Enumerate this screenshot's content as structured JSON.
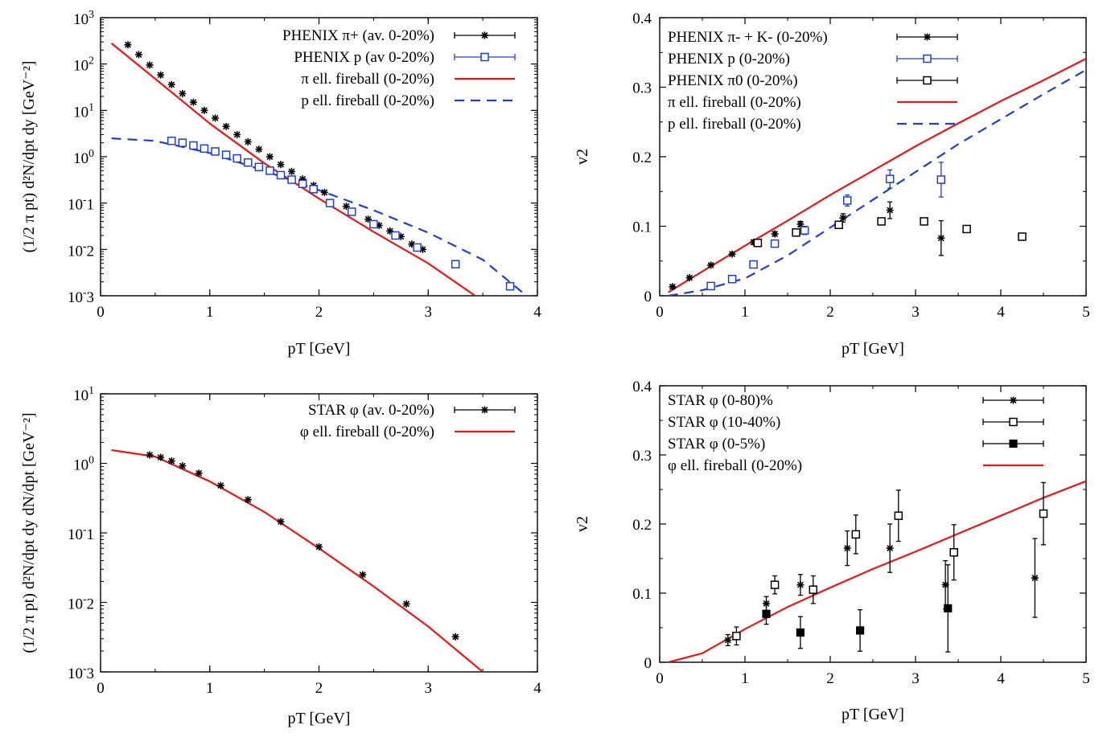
{
  "chart_data": [
    {
      "type": "scatter",
      "xlabel": "pT [GeV]",
      "ylabel": "(1/2 π pt) d²N/dpt dy [GeV⁻²]",
      "xlim": [
        0,
        4
      ],
      "ylim": [
        0.001,
        1000
      ],
      "log_y": true,
      "xticks": [
        "0",
        "1",
        "2",
        "3",
        "4"
      ],
      "yticks": [
        "10^-3",
        "10^-2",
        "10^-1",
        "10^0",
        "10^1",
        "10^2",
        "10^3"
      ],
      "legend_position": "top-right",
      "series": [
        {
          "name": "PHENIX π+ (av. 0-20%)",
          "marker": "star",
          "color": "#000000",
          "x": [
            0.25,
            0.35,
            0.45,
            0.55,
            0.65,
            0.75,
            0.85,
            0.95,
            1.05,
            1.15,
            1.25,
            1.35,
            1.45,
            1.55,
            1.65,
            1.75,
            1.85,
            1.95,
            2.05,
            2.25,
            2.45,
            2.55,
            2.65,
            2.75,
            2.85,
            2.95
          ],
          "y": [
            260,
            160,
            95,
            58,
            36,
            23,
            15,
            10,
            6.8,
            4.5,
            3.0,
            2.1,
            1.45,
            1.0,
            0.68,
            0.48,
            0.33,
            0.24,
            0.17,
            0.085,
            0.045,
            0.033,
            0.025,
            0.019,
            0.013,
            0.01
          ]
        },
        {
          "name": "PHENIX p (av 0-20%)",
          "marker": "open-square",
          "color": "#1f3fd0",
          "x": [
            0.65,
            0.75,
            0.85,
            0.95,
            1.05,
            1.15,
            1.25,
            1.35,
            1.45,
            1.55,
            1.65,
            1.75,
            1.85,
            1.95,
            2.1,
            2.3,
            2.5,
            2.7,
            2.9,
            3.25,
            3.75
          ],
          "y": [
            2.2,
            2.0,
            1.75,
            1.5,
            1.3,
            1.1,
            0.92,
            0.75,
            0.6,
            0.5,
            0.4,
            0.32,
            0.26,
            0.2,
            0.1,
            0.065,
            0.035,
            0.02,
            0.011,
            0.0048,
            0.0016
          ]
        },
        {
          "name": "π ell. fireball (0-20%)",
          "line": "solid",
          "color": "#e81818",
          "x": [
            0.1,
            0.5,
            1.0,
            1.5,
            2.0,
            2.5,
            3.0,
            3.43
          ],
          "y": [
            280,
            48,
            5.2,
            0.72,
            0.125,
            0.024,
            0.005,
            0.001
          ]
        },
        {
          "name": "p ell. fireball (0-20%)",
          "line": "dashed",
          "color": "#1f3fd0",
          "x": [
            0.1,
            0.5,
            1.0,
            1.5,
            2.0,
            2.5,
            3.0,
            3.5,
            3.9
          ],
          "y": [
            2.5,
            2.2,
            1.2,
            0.5,
            0.19,
            0.07,
            0.023,
            0.006,
            0.001
          ]
        }
      ]
    },
    {
      "type": "scatter",
      "xlabel": "pT [GeV]",
      "ylabel": "v2",
      "xlim": [
        0,
        5
      ],
      "ylim": [
        0,
        0.4
      ],
      "xticks": [
        "0",
        "1",
        "2",
        "3",
        "4",
        "5"
      ],
      "yticks": [
        "0",
        "0.1",
        "0.2",
        "0.3",
        "0.4"
      ],
      "legend_position": "top-left",
      "series": [
        {
          "name": "PHENIX π- + K- (0-20%)",
          "marker": "star",
          "color": "#000000",
          "x": [
            0.15,
            0.35,
            0.6,
            0.85,
            1.1,
            1.35,
            1.65,
            2.15,
            2.7,
            3.3
          ],
          "y": [
            0.013,
            0.026,
            0.044,
            0.06,
            0.077,
            0.089,
            0.103,
            0.112,
            0.123,
            0.083
          ],
          "err": [
            0.002,
            0.002,
            0.002,
            0.002,
            0.003,
            0.003,
            0.004,
            0.006,
            0.012,
            0.025
          ]
        },
        {
          "name": "PHENIX p (0-20%)",
          "marker": "open-square",
          "color": "#1f3fd0",
          "x": [
            0.6,
            0.85,
            1.1,
            1.35,
            1.7,
            2.2,
            2.7,
            3.3
          ],
          "y": [
            0.014,
            0.024,
            0.045,
            0.075,
            0.094,
            0.137,
            0.168,
            0.167
          ],
          "err": [
            0.003,
            0.003,
            0.004,
            0.004,
            0.006,
            0.008,
            0.013,
            0.025
          ]
        },
        {
          "name": "PHENIX π0 (0-20%)",
          "marker": "open-square",
          "color": "#000000",
          "x": [
            1.15,
            1.6,
            2.1,
            2.6,
            3.1,
            3.6,
            4.25
          ],
          "y": [
            0.076,
            0.091,
            0.102,
            0.107,
            0.107,
            0.096,
            0.085
          ],
          "err": [
            0.004,
            0.004,
            0.004,
            0.004,
            0.004,
            0.004,
            0.004
          ]
        },
        {
          "name": "π ell. fireball (0-20%)",
          "line": "solid",
          "color": "#e81818",
          "x": [
            0.1,
            0.5,
            1.0,
            1.5,
            2.0,
            2.5,
            3.0,
            3.5,
            4.0,
            4.5,
            5.0
          ],
          "y": [
            0.005,
            0.035,
            0.072,
            0.108,
            0.145,
            0.18,
            0.215,
            0.248,
            0.28,
            0.31,
            0.341
          ]
        },
        {
          "name": "p ell. fireball (0-20%)",
          "line": "dashed",
          "color": "#1f3fd0",
          "x": [
            0.1,
            0.5,
            1.0,
            1.5,
            2.0,
            2.5,
            3.0,
            3.5,
            4.0,
            4.5,
            5.0
          ],
          "y": [
            0.0,
            0.008,
            0.025,
            0.058,
            0.098,
            0.138,
            0.178,
            0.218,
            0.254,
            0.29,
            0.325
          ]
        }
      ]
    },
    {
      "type": "scatter",
      "xlabel": "pT [GeV]",
      "ylabel": "(1/2 π pt) d²N/dpt dy dN/dpt [GeV⁻²]",
      "xlim": [
        0,
        4
      ],
      "ylim": [
        0.001,
        10
      ],
      "log_y": true,
      "xticks": [
        "0",
        "1",
        "2",
        "3",
        "4"
      ],
      "yticks": [
        "10^-3",
        "10^-2",
        "10^-1",
        "10^0",
        "10^1"
      ],
      "legend_position": "top-right",
      "series": [
        {
          "name": "STAR φ (av. 0-20%)",
          "marker": "star",
          "color": "#000000",
          "x": [
            0.45,
            0.55,
            0.65,
            0.75,
            0.9,
            1.1,
            1.35,
            1.65,
            2.0,
            2.4,
            2.8,
            3.25
          ],
          "y": [
            1.32,
            1.22,
            1.08,
            0.92,
            0.72,
            0.48,
            0.3,
            0.145,
            0.063,
            0.025,
            0.0095,
            0.0032
          ]
        },
        {
          "name": "φ ell. fireball (0-20%)",
          "line": "solid",
          "color": "#e81818",
          "x": [
            0.1,
            0.5,
            1.0,
            1.5,
            2.0,
            2.5,
            3.0,
            3.5
          ],
          "y": [
            1.55,
            1.25,
            0.55,
            0.2,
            0.06,
            0.017,
            0.0045,
            0.001
          ]
        }
      ]
    },
    {
      "type": "scatter",
      "xlabel": "pT [GeV]",
      "ylabel": "v2",
      "xlim": [
        0,
        5
      ],
      "ylim": [
        0,
        0.4
      ],
      "xticks": [
        "0",
        "1",
        "2",
        "3",
        "4",
        "5"
      ],
      "yticks": [
        "0",
        "0.1",
        "0.2",
        "0.3",
        "0.4"
      ],
      "legend_position": "top-left",
      "series": [
        {
          "name": "STAR φ (0-80)%",
          "marker": "star",
          "color": "#000000",
          "x": [
            0.8,
            1.25,
            1.65,
            2.2,
            2.7,
            3.35,
            4.4
          ],
          "y": [
            0.032,
            0.085,
            0.112,
            0.165,
            0.165,
            0.112,
            0.122
          ],
          "err": [
            0.008,
            0.01,
            0.015,
            0.025,
            0.035,
            0.035,
            0.057
          ]
        },
        {
          "name": "STAR φ (10-40%)",
          "marker": "open-square",
          "color": "#000000",
          "x": [
            0.9,
            1.35,
            1.8,
            2.3,
            2.8,
            3.45,
            4.5
          ],
          "y": [
            0.038,
            0.112,
            0.105,
            0.185,
            0.212,
            0.159,
            0.215
          ],
          "err": [
            0.013,
            0.013,
            0.02,
            0.028,
            0.037,
            0.04,
            0.045
          ]
        },
        {
          "name": "STAR φ (0-5%)",
          "marker": "filled-square",
          "color": "#000000",
          "x": [
            1.25,
            1.65,
            2.35,
            3.38
          ],
          "y": [
            0.07,
            0.043,
            0.046,
            0.078
          ],
          "err": [
            0.015,
            0.023,
            0.03,
            0.063
          ]
        },
        {
          "name": "φ ell. fireball (0-20%)",
          "line": "solid",
          "color": "#e81818",
          "x": [
            0.1,
            0.5,
            1.0,
            1.5,
            2.0,
            2.5,
            3.0,
            3.5,
            4.0,
            4.5,
            5.0
          ],
          "y": [
            0.0,
            0.013,
            0.048,
            0.08,
            0.108,
            0.135,
            0.16,
            0.186,
            0.212,
            0.238,
            0.262
          ]
        }
      ]
    }
  ]
}
